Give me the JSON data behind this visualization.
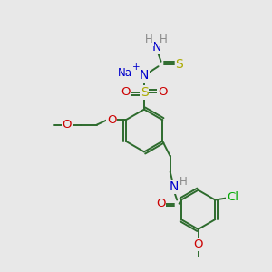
{
  "bg": "#e8e8e8",
  "C": "#2d6b2d",
  "N": "#0000cc",
  "O": "#cc0000",
  "S": "#aaaa00",
  "Cl": "#00aa00",
  "Na": "#0000cc",
  "H": "#888888",
  "bond": "#2d6b2d",
  "lw": 1.4,
  "fs": 8.5,
  "figsize": [
    3.0,
    3.0
  ],
  "dpi": 100
}
